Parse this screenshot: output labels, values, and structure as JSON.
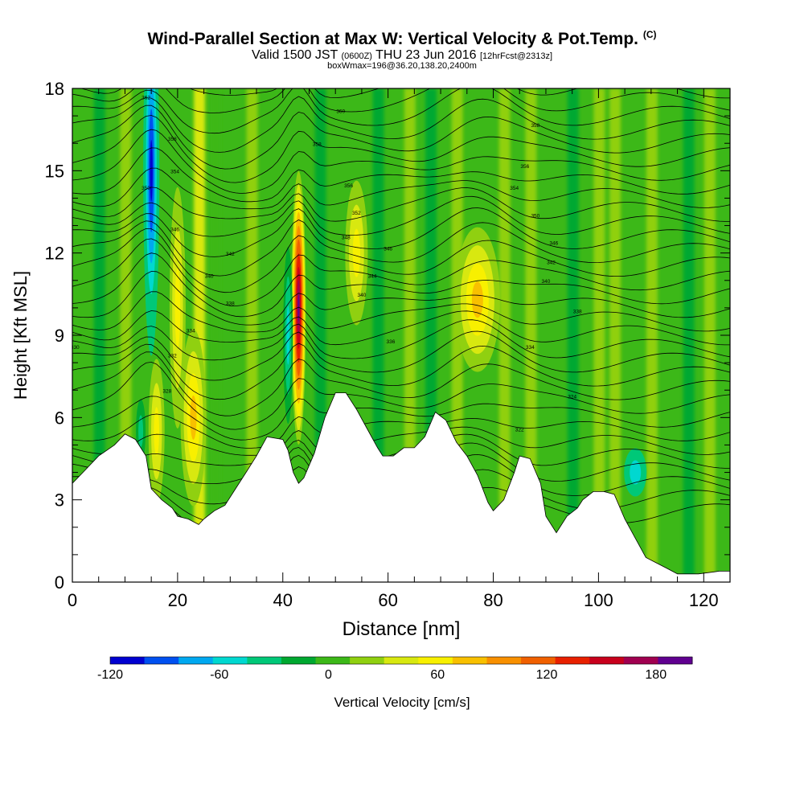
{
  "title": "Wind-Parallel Section at Max W: Vertical Velocity & Pot.Temp.",
  "title_mark": "(C)",
  "subtitle_a": "Valid 1500 JST",
  "subtitle_b": "(0600Z)",
  "subtitle_c": "THU 23 Jun 2016",
  "subtitle_d": "[12hrFcst@2313z]",
  "subtitle_e": "boxWmax=196@36.20,138.20,2400m",
  "chart_data": {
    "type": "heatmap",
    "xlabel": "Distance [nm]",
    "ylabel": "Height [Kft MSL]",
    "xlim": [
      0,
      125
    ],
    "ylim": [
      0,
      18
    ],
    "x_ticks": [
      "0",
      "20",
      "40",
      "60",
      "80",
      "100",
      "120"
    ],
    "y_ticks": [
      "0",
      "3",
      "6",
      "9",
      "12",
      "15",
      "18"
    ],
    "colorbar": {
      "label": "Vertical Velocity [cm/s]",
      "range": [
        -120,
        200
      ],
      "ticks": [
        "-120",
        "-60",
        "0",
        "60",
        "120",
        "180"
      ],
      "colors": [
        "#0000d0",
        "#0050f0",
        "#00a8f0",
        "#00d8d0",
        "#00c878",
        "#00a830",
        "#3cb818",
        "#90d010",
        "#d8e810",
        "#f8f000",
        "#f8c000",
        "#f89000",
        "#f06000",
        "#e82000",
        "#c8001c",
        "#a00050",
        "#600090"
      ]
    },
    "terrain_kft": [
      [
        0,
        3.6
      ],
      [
        2,
        4.0
      ],
      [
        5,
        4.6
      ],
      [
        8,
        5.0
      ],
      [
        10,
        5.4
      ],
      [
        12,
        5.2
      ],
      [
        14,
        4.6
      ],
      [
        15,
        3.4
      ],
      [
        17,
        3.0
      ],
      [
        19,
        2.7
      ],
      [
        20,
        2.4
      ],
      [
        22,
        2.3
      ],
      [
        24,
        2.1
      ],
      [
        25,
        2.3
      ],
      [
        27,
        2.6
      ],
      [
        29,
        2.8
      ],
      [
        31,
        3.4
      ],
      [
        33,
        4.0
      ],
      [
        35,
        4.6
      ],
      [
        37,
        5.3
      ],
      [
        40,
        5.2
      ],
      [
        41,
        4.8
      ],
      [
        42,
        4.0
      ],
      [
        43,
        3.6
      ],
      [
        44,
        3.8
      ],
      [
        46,
        4.7
      ],
      [
        48,
        6.0
      ],
      [
        50,
        6.9
      ],
      [
        52,
        6.9
      ],
      [
        54,
        6.3
      ],
      [
        56,
        5.6
      ],
      [
        58,
        4.9
      ],
      [
        59,
        4.6
      ],
      [
        61,
        4.6
      ],
      [
        63,
        4.9
      ],
      [
        65,
        4.9
      ],
      [
        67,
        5.3
      ],
      [
        69,
        6.2
      ],
      [
        71,
        5.9
      ],
      [
        73,
        5.1
      ],
      [
        75,
        4.6
      ],
      [
        77,
        3.9
      ],
      [
        79,
        2.9
      ],
      [
        80,
        2.6
      ],
      [
        82,
        3.0
      ],
      [
        84,
        4.0
      ],
      [
        85,
        4.6
      ],
      [
        87,
        4.5
      ],
      [
        89,
        3.6
      ],
      [
        90,
        2.4
      ],
      [
        92,
        1.8
      ],
      [
        94,
        2.4
      ],
      [
        96,
        2.7
      ],
      [
        97,
        3.0
      ],
      [
        99,
        3.3
      ],
      [
        101,
        3.3
      ],
      [
        103,
        3.2
      ],
      [
        105,
        2.3
      ],
      [
        107,
        1.6
      ],
      [
        109,
        0.9
      ],
      [
        111,
        0.7
      ],
      [
        113,
        0.5
      ],
      [
        115,
        0.3
      ],
      [
        119,
        0.3
      ],
      [
        123,
        0.4
      ],
      [
        125,
        0.4
      ]
    ],
    "updrafts": [
      {
        "x": 43,
        "z": 10.0,
        "w": 196
      },
      {
        "x": 77,
        "z": 10.3,
        "w": 70
      },
      {
        "x": 23,
        "z": 6.0,
        "w": 70
      },
      {
        "x": 20,
        "z": 10.0,
        "w": 55
      },
      {
        "x": 16,
        "z": 5.5,
        "w": 55
      },
      {
        "x": 54,
        "z": 12.0,
        "w": 50
      }
    ],
    "downdrafts": [
      {
        "x": 15,
        "z": 15.0,
        "w": -110
      },
      {
        "x": 41,
        "z": 9.0,
        "w": -50
      },
      {
        "x": 107,
        "z": 4.0,
        "w": -45
      },
      {
        "x": 13,
        "z": 5.5,
        "w": -40
      }
    ],
    "theta_contour_labels": [
      {
        "x": 0.5,
        "z": 8.5,
        "text": "330"
      },
      {
        "x": 14,
        "z": 17.6,
        "text": "362"
      },
      {
        "x": 19,
        "z": 16.1,
        "text": "358"
      },
      {
        "x": 19.5,
        "z": 14.9,
        "text": "354"
      },
      {
        "x": 14,
        "z": 14.3,
        "text": "350"
      },
      {
        "x": 19.5,
        "z": 12.8,
        "text": "346"
      },
      {
        "x": 30,
        "z": 11.9,
        "text": "342"
      },
      {
        "x": 26,
        "z": 11.1,
        "text": "340"
      },
      {
        "x": 30,
        "z": 10.1,
        "text": "338"
      },
      {
        "x": 22.5,
        "z": 9.1,
        "text": "334"
      },
      {
        "x": 19,
        "z": 8.2,
        "text": "332"
      },
      {
        "x": 18,
        "z": 6.9,
        "text": "328"
      },
      {
        "x": 51,
        "z": 17.1,
        "text": "360"
      },
      {
        "x": 46.5,
        "z": 15.9,
        "text": "358"
      },
      {
        "x": 52.5,
        "z": 14.4,
        "text": "356"
      },
      {
        "x": 54,
        "z": 13.4,
        "text": "352"
      },
      {
        "x": 52,
        "z": 12.5,
        "text": "348"
      },
      {
        "x": 60,
        "z": 12.1,
        "text": "346"
      },
      {
        "x": 57,
        "z": 11.1,
        "text": "344"
      },
      {
        "x": 55,
        "z": 10.4,
        "text": "340"
      },
      {
        "x": 60.5,
        "z": 8.7,
        "text": "336"
      },
      {
        "x": 88,
        "z": 16.6,
        "text": "358"
      },
      {
        "x": 86,
        "z": 15.1,
        "text": "356"
      },
      {
        "x": 84,
        "z": 14.3,
        "text": "354"
      },
      {
        "x": 88,
        "z": 13.3,
        "text": "350"
      },
      {
        "x": 91.5,
        "z": 12.3,
        "text": "346"
      },
      {
        "x": 91,
        "z": 11.6,
        "text": "342"
      },
      {
        "x": 90,
        "z": 10.9,
        "text": "340"
      },
      {
        "x": 96,
        "z": 9.8,
        "text": "338"
      },
      {
        "x": 87,
        "z": 8.5,
        "text": "334"
      },
      {
        "x": 95,
        "z": 6.7,
        "text": "324"
      },
      {
        "x": 85,
        "z": 5.5,
        "text": "322"
      }
    ]
  }
}
